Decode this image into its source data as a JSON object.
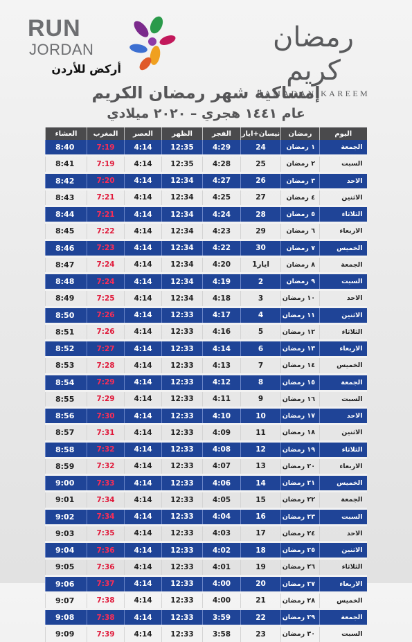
{
  "brand": {
    "run": "RUN",
    "jordan": "JORDAN",
    "arabic": "أركض للأردن"
  },
  "ramadan_logo": {
    "arabic": "رمضان كريم",
    "latin": "RAMADAN KAREEM"
  },
  "title": "إمساكية شهر رمضان الكريم",
  "subtitle": "عام ١٤٤١ هجري – ٢٠٢٠ ميلادي",
  "colors": {
    "header_bg": "#4a4a4c",
    "row_blue": "#1f4497",
    "maghrib_red": "#e0193a",
    "text_gray": "#555557"
  },
  "table": {
    "headers": {
      "isha": "العشاء",
      "maghrib": "المغرب",
      "asr": "العصر",
      "dhuhr": "الظهر",
      "fajr": "الفجر",
      "greg": "نيسان+ايار",
      "ramadan": "رمضان",
      "day": "اليوم"
    },
    "rows": [
      {
        "day": "الجمعة",
        "ramadan": "١ رمضان",
        "greg": "24",
        "fajr": "4:29",
        "dhuhr": "12:35",
        "asr": "4:14",
        "maghrib": "7:19",
        "isha": "8:40"
      },
      {
        "day": "السبت",
        "ramadan": "٢ رمضان",
        "greg": "25",
        "fajr": "4:28",
        "dhuhr": "12:35",
        "asr": "4:14",
        "maghrib": "7:19",
        "isha": "8:41"
      },
      {
        "day": "الاحد",
        "ramadan": "٣ رمضان",
        "greg": "26",
        "fajr": "4:27",
        "dhuhr": "12:34",
        "asr": "4:14",
        "maghrib": "7:20",
        "isha": "8:42"
      },
      {
        "day": "الاثنين",
        "ramadan": "٤ رمضان",
        "greg": "27",
        "fajr": "4:25",
        "dhuhr": "12:34",
        "asr": "4:14",
        "maghrib": "7:21",
        "isha": "8:43"
      },
      {
        "day": "الثلاثاء",
        "ramadan": "٥ رمضان",
        "greg": "28",
        "fajr": "4:24",
        "dhuhr": "12:34",
        "asr": "4:14",
        "maghrib": "7:21",
        "isha": "8:44"
      },
      {
        "day": "الاربعاء",
        "ramadan": "٦ رمضان",
        "greg": "29",
        "fajr": "4:23",
        "dhuhr": "12:34",
        "asr": "4:14",
        "maghrib": "7:22",
        "isha": "8:45"
      },
      {
        "day": "الخميس",
        "ramadan": "٧ رمضان",
        "greg": "30",
        "fajr": "4:22",
        "dhuhr": "12:34",
        "asr": "4:14",
        "maghrib": "7:23",
        "isha": "8:46"
      },
      {
        "day": "الجمعة",
        "ramadan": "٨ رمضان",
        "greg": "1ايار",
        "fajr": "4:20",
        "dhuhr": "12:34",
        "asr": "4:14",
        "maghrib": "7:24",
        "isha": "8:47"
      },
      {
        "day": "السبت",
        "ramadan": "٩ رمضان",
        "greg": "2",
        "fajr": "4:19",
        "dhuhr": "12:34",
        "asr": "4:14",
        "maghrib": "7:24",
        "isha": "8:48"
      },
      {
        "day": "الاحد",
        "ramadan": "١٠ رمضان",
        "greg": "3",
        "fajr": "4:18",
        "dhuhr": "12:34",
        "asr": "4:14",
        "maghrib": "7:25",
        "isha": "8:49"
      },
      {
        "day": "الاثنين",
        "ramadan": "١١ رمضان",
        "greg": "4",
        "fajr": "4:17",
        "dhuhr": "12:33",
        "asr": "4:14",
        "maghrib": "7:26",
        "isha": "8:50"
      },
      {
        "day": "الثلاثاء",
        "ramadan": "١٢ رمضان",
        "greg": "5",
        "fajr": "4:16",
        "dhuhr": "12:33",
        "asr": "4:14",
        "maghrib": "7:26",
        "isha": "8:51"
      },
      {
        "day": "الاربعاء",
        "ramadan": "١٣ رمضان",
        "greg": "6",
        "fajr": "4:14",
        "dhuhr": "12:33",
        "asr": "4:14",
        "maghrib": "7:27",
        "isha": "8:52"
      },
      {
        "day": "الخميس",
        "ramadan": "١٤ رمضان",
        "greg": "7",
        "fajr": "4:13",
        "dhuhr": "12:33",
        "asr": "4:14",
        "maghrib": "7:28",
        "isha": "8:53"
      },
      {
        "day": "الجمعة",
        "ramadan": "١٥ رمضان",
        "greg": "8",
        "fajr": "4:12",
        "dhuhr": "12:33",
        "asr": "4:14",
        "maghrib": "7:29",
        "isha": "8:54"
      },
      {
        "day": "السبت",
        "ramadan": "١٦ رمضان",
        "greg": "9",
        "fajr": "4:11",
        "dhuhr": "12:33",
        "asr": "4:14",
        "maghrib": "7:29",
        "isha": "8:55"
      },
      {
        "day": "الاحد",
        "ramadan": "١٧ رمضان",
        "greg": "10",
        "fajr": "4:10",
        "dhuhr": "12:33",
        "asr": "4:14",
        "maghrib": "7:30",
        "isha": "8:56"
      },
      {
        "day": "الاثنين",
        "ramadan": "١٨ رمضان",
        "greg": "11",
        "fajr": "4:09",
        "dhuhr": "12:33",
        "asr": "4:14",
        "maghrib": "7:31",
        "isha": "8:57"
      },
      {
        "day": "الثلاثاء",
        "ramadan": "١٩ رمضان",
        "greg": "12",
        "fajr": "4:08",
        "dhuhr": "12:33",
        "asr": "4:14",
        "maghrib": "7:32",
        "isha": "8:58"
      },
      {
        "day": "الاربعاء",
        "ramadan": "٢٠ رمضان",
        "greg": "13",
        "fajr": "4:07",
        "dhuhr": "12:33",
        "asr": "4:14",
        "maghrib": "7:32",
        "isha": "8:59"
      },
      {
        "day": "الخميس",
        "ramadan": "٢١ رمضان",
        "greg": "14",
        "fajr": "4:06",
        "dhuhr": "12:33",
        "asr": "4:14",
        "maghrib": "7:33",
        "isha": "9:00"
      },
      {
        "day": "الجمعة",
        "ramadan": "٢٢ رمضان",
        "greg": "15",
        "fajr": "4:05",
        "dhuhr": "12:33",
        "asr": "4:14",
        "maghrib": "7:34",
        "isha": "9:01"
      },
      {
        "day": "السبت",
        "ramadan": "٢٣ رمضان",
        "greg": "16",
        "fajr": "4:04",
        "dhuhr": "12:33",
        "asr": "4:14",
        "maghrib": "7:34",
        "isha": "9:02"
      },
      {
        "day": "الاحد",
        "ramadan": "٢٤ رمضان",
        "greg": "17",
        "fajr": "4:03",
        "dhuhr": "12:33",
        "asr": "4:14",
        "maghrib": "7:35",
        "isha": "9:03"
      },
      {
        "day": "الاثنين",
        "ramadan": "٢٥ رمضان",
        "greg": "18",
        "fajr": "4:02",
        "dhuhr": "12:33",
        "asr": "4:14",
        "maghrib": "7:36",
        "isha": "9:04"
      },
      {
        "day": "الثلاثاء",
        "ramadan": "٢٦ رمضان",
        "greg": "19",
        "fajr": "4:01",
        "dhuhr": "12:33",
        "asr": "4:14",
        "maghrib": "7:36",
        "isha": "9:05"
      },
      {
        "day": "الاربعاء",
        "ramadan": "٢٧ رمضان",
        "greg": "20",
        "fajr": "4:00",
        "dhuhr": "12:33",
        "asr": "4:14",
        "maghrib": "7:37",
        "isha": "9:06"
      },
      {
        "day": "الخميس",
        "ramadan": "٢٨ رمضان",
        "greg": "21",
        "fajr": "4:00",
        "dhuhr": "12:33",
        "asr": "4:14",
        "maghrib": "7:38",
        "isha": "9:07"
      },
      {
        "day": "الجمعة",
        "ramadan": "٢٩ رمضان",
        "greg": "22",
        "fajr": "3:59",
        "dhuhr": "12:33",
        "asr": "4:14",
        "maghrib": "7:38",
        "isha": "9:08"
      },
      {
        "day": "السبت",
        "ramadan": "٣٠ رمضان",
        "greg": "23",
        "fajr": "3:58",
        "dhuhr": "12:33",
        "asr": "4:14",
        "maghrib": "7:39",
        "isha": "9:09"
      }
    ]
  }
}
